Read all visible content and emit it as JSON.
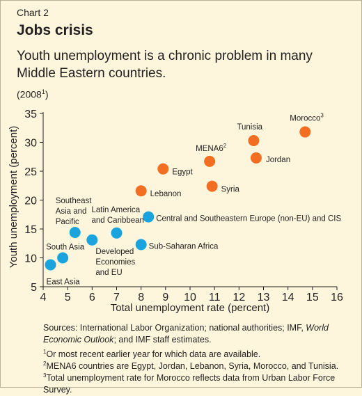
{
  "header": {
    "chart_label": "Chart 2",
    "title": "Jobs crisis",
    "subtitle": "Youth unemployment is a chronic problem in many Middle Eastern countries.",
    "year_text": "(2008",
    "year_footnote": "1",
    "year_close": ")"
  },
  "colors": {
    "background": "#fdf6dd",
    "mena": "#f26f21",
    "other": "#1aa3dc"
  },
  "chart_data": {
    "type": "scatter",
    "xlabel": "Total unemployment rate (percent)",
    "ylabel": "Youth unemployment (percent)",
    "xlim": [
      4,
      16
    ],
    "ylim": [
      5,
      35
    ],
    "xticks": [
      4,
      5,
      6,
      7,
      8,
      9,
      10,
      11,
      12,
      13,
      14,
      15,
      16
    ],
    "yticks": [
      5,
      10,
      15,
      20,
      25,
      30,
      35
    ],
    "grid": false,
    "points": [
      {
        "label": "Morocco",
        "sup": "3",
        "x": 14.7,
        "y": 31.8,
        "group": "mena"
      },
      {
        "label": "Tunisia",
        "sup": "",
        "x": 12.6,
        "y": 30.3,
        "group": "mena"
      },
      {
        "label": "Jordan",
        "sup": "",
        "x": 12.7,
        "y": 27.3,
        "group": "mena"
      },
      {
        "label": "MENA6",
        "sup": "2",
        "x": 10.8,
        "y": 26.7,
        "group": "mena"
      },
      {
        "label": "Egypt",
        "sup": "",
        "x": 8.9,
        "y": 25.4,
        "group": "mena"
      },
      {
        "label": "Syria",
        "sup": "",
        "x": 10.9,
        "y": 22.4,
        "group": "mena"
      },
      {
        "label": "Lebanon",
        "sup": "",
        "x": 8.0,
        "y": 21.6,
        "group": "mena"
      },
      {
        "label": "Central and Southeastern Europe (non-EU) and CIS",
        "sup": "",
        "x": 8.3,
        "y": 17.1,
        "group": "other"
      },
      {
        "label": "Latin America and Caribbean",
        "sup": "",
        "x": 7.0,
        "y": 14.3,
        "group": "other"
      },
      {
        "label": "Southeast Asia and Pacific",
        "sup": "",
        "x": 5.3,
        "y": 14.4,
        "group": "other"
      },
      {
        "label": "Developed Economies and EU",
        "sup": "",
        "x": 6.0,
        "y": 13.1,
        "group": "other"
      },
      {
        "label": "Sub-Saharan Africa",
        "sup": "",
        "x": 8.0,
        "y": 12.3,
        "group": "other"
      },
      {
        "label": "South Asia",
        "sup": "",
        "x": 4.8,
        "y": 10.0,
        "group": "other"
      },
      {
        "label": "East Asia",
        "sup": "",
        "x": 4.3,
        "y": 8.8,
        "group": "other"
      }
    ]
  },
  "footer": {
    "sources_prefix": "Sources: International Labor Organization; national authorities; IMF, ",
    "sources_italic": "World Economic Outlook",
    "sources_suffix": "; and IMF staff estimates.",
    "notes": [
      {
        "sup": "1",
        "text": "Or most recent earlier year for which data are available."
      },
      {
        "sup": "2",
        "text": "MENA6 countries are Egypt, Jordan, Lebanon, Syria, Morocco, and Tunisia."
      },
      {
        "sup": "3",
        "text": "Total unemployment rate for Morocco reflects data from Urban Labor Force Survey."
      }
    ]
  }
}
